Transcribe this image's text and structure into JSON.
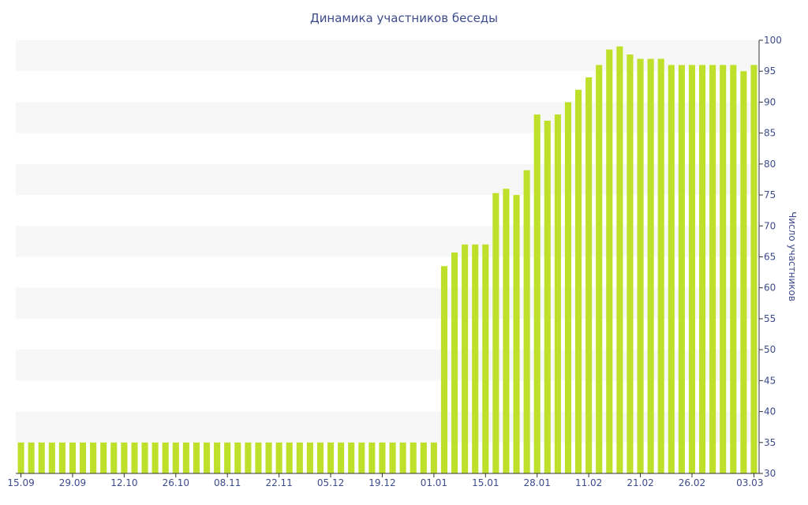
{
  "chart_data": {
    "type": "bar",
    "title": "Динамика участников беседы",
    "ylabel": "Число участников",
    "xlabel": "",
    "ylim": [
      30,
      100
    ],
    "y_ticks": [
      30,
      35,
      40,
      45,
      50,
      55,
      60,
      65,
      70,
      75,
      80,
      85,
      90,
      95,
      100
    ],
    "x_tick_labels": [
      "15.09",
      "29.09",
      "12.10",
      "26.10",
      "08.11",
      "22.11",
      "05.12",
      "19.12",
      "01.01",
      "15.01",
      "28.01",
      "11.02",
      "21.02",
      "26.02",
      "03.03"
    ],
    "x_tick_positions": [
      0,
      5,
      10,
      15,
      20,
      25,
      30,
      35,
      40,
      45,
      50,
      55,
      60,
      65,
      71
    ],
    "values": [
      35,
      35,
      35,
      35,
      35,
      35,
      35,
      35,
      35,
      35,
      35,
      35,
      35,
      35,
      35,
      35,
      35,
      35,
      35,
      35,
      35,
      35,
      35,
      35,
      35,
      35,
      35,
      35,
      35,
      35,
      35,
      35,
      35,
      35,
      35,
      35,
      35,
      35,
      35,
      35,
      35,
      63.5,
      65.7,
      67,
      67,
      67,
      75.3,
      76,
      75,
      79,
      88,
      87,
      88,
      90,
      92,
      94,
      96,
      98.5,
      99,
      97.7,
      97,
      97,
      97,
      96,
      96,
      96,
      96,
      96,
      96,
      96,
      95,
      96
    ],
    "grid": "horizontal banded",
    "y_axis_side": "right",
    "colors": {
      "bar": "#bfe02a",
      "band": "#f7f7f7",
      "text": "#3d4b8c",
      "axis": "#333333"
    }
  }
}
